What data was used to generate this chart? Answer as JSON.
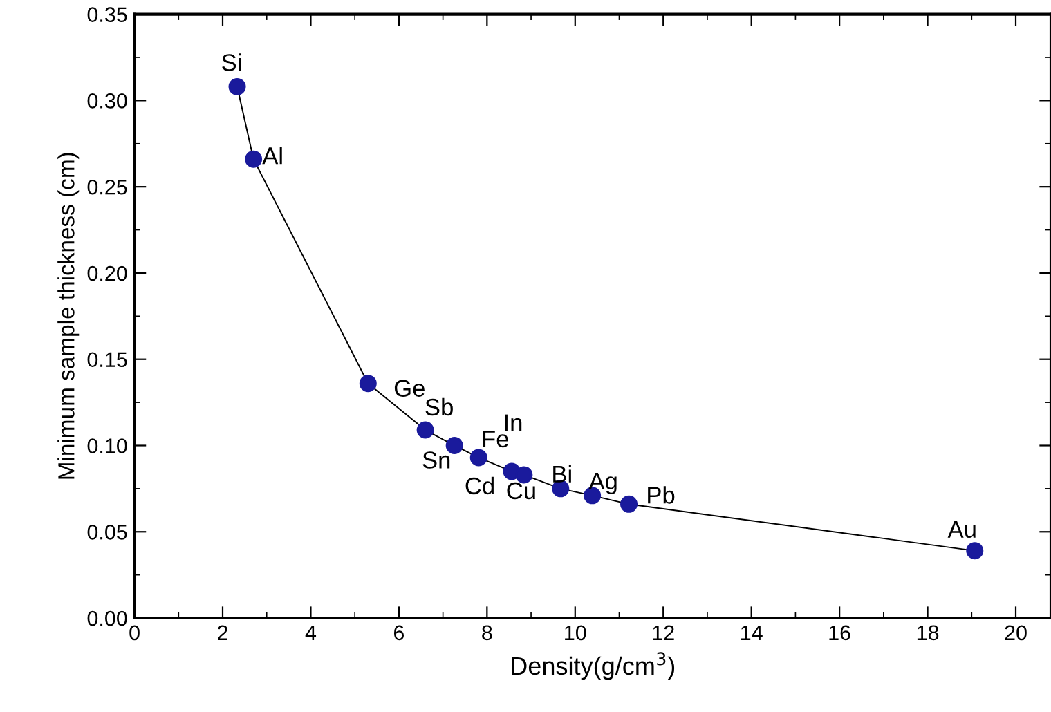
{
  "chart_data": {
    "type": "line",
    "xlabel": "Density(g/cm$^{3}$)",
    "ylabel": "Minimum sample thickness (cm)",
    "x": [
      2.33,
      2.7,
      5.3,
      6.6,
      7.26,
      7.81,
      8.56,
      8.84,
      9.67,
      10.39,
      11.22,
      19.07
    ],
    "series": [
      {
        "color": "#1a1a9c",
        "values": [
          0.308,
          0.266,
          0.136,
          0.109,
          0.1,
          0.093,
          0.085,
          0.083,
          0.075,
          0.071,
          0.066,
          0.039
        ]
      }
    ],
    "marker": "circle",
    "line_style": "solid",
    "grid": false,
    "legend": false,
    "xlim": [
      0,
      20.8
    ],
    "xticks": [
      0,
      2,
      4,
      6,
      8,
      10,
      12,
      14,
      16,
      18,
      20
    ],
    "ylim": [
      0,
      0.35
    ],
    "yticks": [
      {
        "value": 0,
        "label": "0.00"
      },
      {
        "value": 0.05,
        "label": "0.05"
      },
      {
        "value": 0.1,
        "label": "0.10"
      },
      {
        "value": 0.15,
        "label": "0.15"
      },
      {
        "value": 0.2,
        "label": "0.20"
      },
      {
        "value": 0.25,
        "label": "0.25"
      },
      {
        "value": 0.3,
        "label": "0.30"
      },
      {
        "value": 0.35,
        "label": "0.35"
      }
    ],
    "annotations": [
      {
        "text": "Si",
        "x": 2.33,
        "y": 0.308
      },
      {
        "text": "Al",
        "x": 2.7,
        "y": 0.266
      },
      {
        "text": "Ge",
        "x": 5.3,
        "y": 0.136
      },
      {
        "text": "Sb",
        "x": 6.6,
        "y": 0.109
      },
      "In",
      {
        "text": "Fe",
        "x": 7.81,
        "y": 0.093
      },
      {
        "text": "Sn",
        "x": 7.26,
        "y": 0.1
      },
      {
        "text": "Cd",
        "x": 8.56,
        "y": 0.085
      },
      {
        "text": "Cu",
        "x": 8.84,
        "y": 0.083
      },
      {
        "text": "Bi",
        "x": 9.67,
        "y": 0.075
      },
      {
        "text": "Ag",
        "x": 10.39,
        "y": 0.071
      },
      {
        "text": "Pb",
        "x": 11.22,
        "y": 0.066
      },
      {
        "text": "Au",
        "x": 19.07,
        "y": 0.039
      }
    ]
  }
}
